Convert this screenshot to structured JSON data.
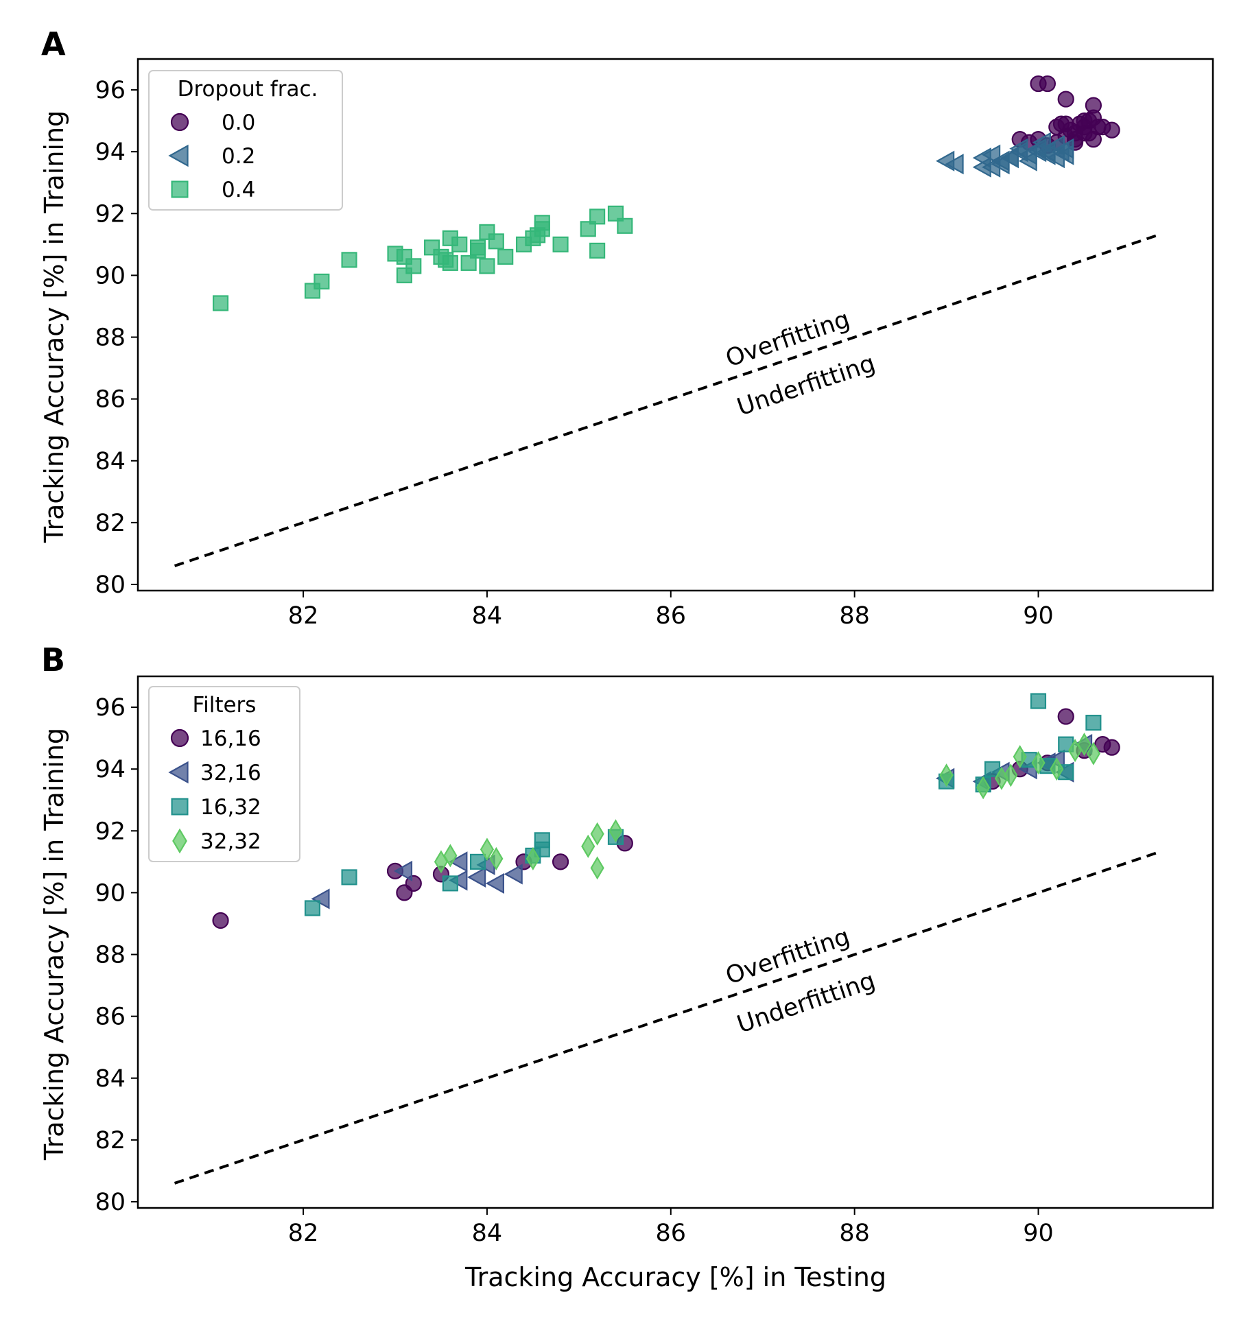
{
  "chart_data": [
    {
      "type": "scatter",
      "panel_label": "A",
      "xlabel": "",
      "ylabel": "Tracking Accuracy [%] in Training",
      "xlim": [
        80.2,
        91.9
      ],
      "ylim": [
        79.8,
        97.0
      ],
      "xticks": [
        82,
        84,
        86,
        88,
        90
      ],
      "yticks": [
        80,
        82,
        84,
        86,
        88,
        90,
        92,
        94,
        96
      ],
      "legend": {
        "title": "Dropout frac.",
        "position": "top-left"
      },
      "reference_line": {
        "x": [
          80.6,
          91.3
        ],
        "y": [
          80.6,
          91.3
        ],
        "style": "dashed"
      },
      "annotations": [
        {
          "text": "Overfitting",
          "x": 87.3,
          "y": 87.7
        },
        {
          "text": "Underfitting",
          "x": 87.5,
          "y": 86.2
        }
      ],
      "series": [
        {
          "name": "0.0",
          "marker": "circle",
          "color": "#440154",
          "x": [
            90.0,
            90.1,
            90.3,
            90.6,
            90.5,
            90.2,
            90.3,
            90.4,
            90.5,
            90.6,
            90.7,
            90.8,
            90.3,
            90.4,
            90.5,
            90.6,
            89.8,
            89.9,
            90.0,
            90.1,
            90.2,
            90.35,
            90.45,
            90.55,
            90.65,
            90.25,
            90.4,
            90.55
          ],
          "y": [
            96.2,
            96.2,
            95.7,
            95.5,
            95.0,
            94.8,
            94.9,
            94.6,
            94.8,
            95.1,
            94.8,
            94.7,
            94.5,
            94.4,
            94.6,
            94.4,
            94.4,
            94.3,
            94.4,
            94.2,
            94.3,
            94.7,
            94.9,
            94.6,
            94.8,
            94.9,
            94.3,
            95.0
          ]
        },
        {
          "name": "0.2",
          "marker": "triangle-left",
          "color": "#31688e",
          "x": [
            89.0,
            89.1,
            89.4,
            89.5,
            89.6,
            89.7,
            89.8,
            89.9,
            90.0,
            90.1,
            90.2,
            90.3,
            89.5,
            89.6,
            89.7,
            89.9,
            90.0,
            90.1,
            90.2,
            90.3,
            89.4,
            89.8,
            90.05,
            90.25
          ],
          "y": [
            93.7,
            93.6,
            93.8,
            93.9,
            93.7,
            93.8,
            94.0,
            93.9,
            94.1,
            94.0,
            94.2,
            94.1,
            93.5,
            93.6,
            93.8,
            93.7,
            94.0,
            93.9,
            93.8,
            93.9,
            93.5,
            94.1,
            94.3,
            94.0
          ]
        },
        {
          "name": "0.4",
          "marker": "square",
          "color": "#35b779",
          "x": [
            81.1,
            82.1,
            82.2,
            82.5,
            83.0,
            83.1,
            83.1,
            83.2,
            83.4,
            83.5,
            83.6,
            83.6,
            83.7,
            83.8,
            83.9,
            84.0,
            84.0,
            84.1,
            84.2,
            84.4,
            84.5,
            84.6,
            84.6,
            84.8,
            85.1,
            85.2,
            85.2,
            85.4,
            85.5,
            83.55,
            83.9,
            84.55
          ],
          "y": [
            89.1,
            89.5,
            89.8,
            90.5,
            90.7,
            90.0,
            90.6,
            90.3,
            90.9,
            90.6,
            91.2,
            90.4,
            91.0,
            90.4,
            90.9,
            91.4,
            90.3,
            91.1,
            90.6,
            91.0,
            91.2,
            91.7,
            91.5,
            91.0,
            91.5,
            91.9,
            90.8,
            92.0,
            91.6,
            90.5,
            90.8,
            91.3
          ]
        }
      ]
    },
    {
      "type": "scatter",
      "panel_label": "B",
      "xlabel": "Tracking Accuracy [%] in Testing",
      "ylabel": "Tracking Accuracy [%] in Training",
      "xlim": [
        80.2,
        91.9
      ],
      "ylim": [
        79.8,
        97.0
      ],
      "xticks": [
        82,
        84,
        86,
        88,
        90
      ],
      "yticks": [
        80,
        82,
        84,
        86,
        88,
        90,
        92,
        94,
        96
      ],
      "legend": {
        "title": "Filters",
        "position": "top-left"
      },
      "reference_line": {
        "x": [
          80.6,
          91.3
        ],
        "y": [
          80.6,
          91.3
        ],
        "style": "dashed"
      },
      "annotations": [
        {
          "text": "Overfitting",
          "x": 87.3,
          "y": 87.7
        },
        {
          "text": "Underfitting",
          "x": 87.5,
          "y": 86.2
        }
      ],
      "series": [
        {
          "name": "16,16",
          "marker": "circle",
          "color": "#440154",
          "x": [
            81.1,
            83.0,
            83.1,
            83.2,
            83.5,
            84.4,
            84.8,
            85.5,
            90.3,
            90.8,
            90.7,
            89.5,
            89.8,
            90.1,
            90.5
          ],
          "y": [
            89.1,
            90.7,
            90.0,
            90.3,
            90.6,
            91.0,
            91.0,
            91.6,
            95.7,
            94.7,
            94.8,
            93.6,
            94.0,
            94.2,
            94.6
          ]
        },
        {
          "name": "32,16",
          "marker": "triangle-left",
          "color": "#3b528b",
          "x": [
            82.2,
            83.1,
            83.7,
            83.7,
            83.9,
            84.0,
            84.1,
            84.3,
            89.0,
            89.4,
            89.6,
            89.9,
            90.1,
            90.3,
            90.5,
            90.2
          ],
          "y": [
            89.8,
            90.7,
            91.0,
            90.4,
            90.5,
            90.9,
            90.3,
            90.6,
            93.7,
            93.6,
            93.9,
            94.0,
            94.2,
            93.9,
            94.8,
            94.3
          ]
        },
        {
          "name": "16,32",
          "marker": "square",
          "color": "#21918c",
          "x": [
            82.1,
            82.5,
            83.6,
            83.9,
            84.5,
            84.6,
            84.6,
            85.4,
            89.0,
            89.4,
            89.5,
            89.9,
            90.0,
            90.3,
            90.6,
            90.3,
            90.1
          ],
          "y": [
            89.5,
            90.5,
            90.3,
            91.0,
            91.2,
            91.7,
            91.4,
            91.8,
            93.6,
            93.5,
            94.0,
            94.3,
            96.2,
            94.8,
            95.5,
            93.9,
            94.1
          ]
        },
        {
          "name": "32,32",
          "marker": "diamond",
          "color": "#5ec962",
          "x": [
            83.5,
            83.6,
            84.0,
            84.1,
            84.5,
            85.1,
            85.2,
            85.2,
            85.4,
            89.0,
            89.4,
            89.6,
            89.7,
            89.8,
            90.0,
            90.2,
            90.4,
            90.5,
            90.6
          ],
          "y": [
            91.0,
            91.2,
            91.4,
            91.1,
            91.1,
            91.5,
            91.9,
            90.8,
            92.0,
            93.8,
            93.4,
            93.7,
            93.8,
            94.4,
            94.2,
            94.0,
            94.6,
            94.8,
            94.5
          ]
        }
      ]
    }
  ]
}
